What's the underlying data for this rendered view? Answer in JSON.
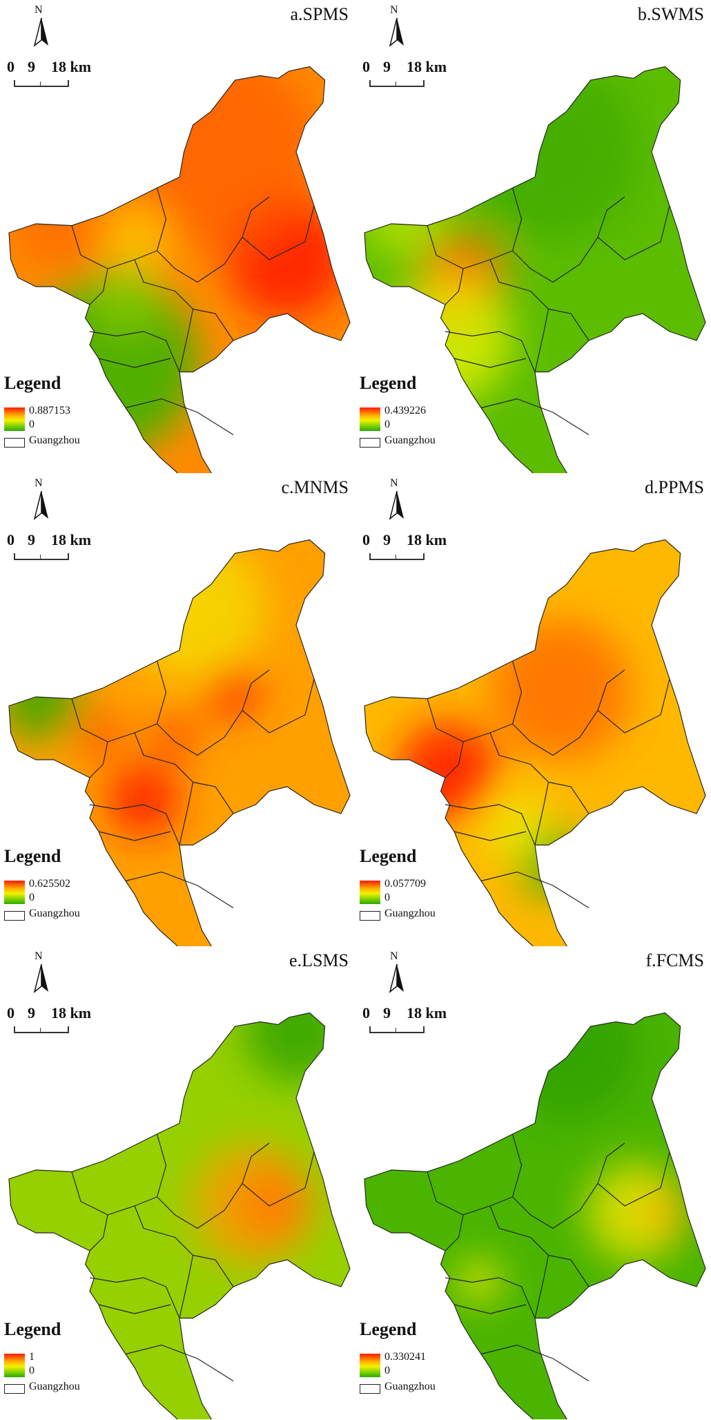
{
  "north_label": "N",
  "scale": {
    "ticks": [
      "0",
      "9",
      "18"
    ],
    "unit": "km"
  },
  "legend": {
    "title": "Legend",
    "boundary_label": "Guangzhou"
  },
  "panels": [
    {
      "title": "a.SPMS",
      "max": "0.887153",
      "min": "0",
      "hotspots": [
        [
          "#ff2000",
          0.82,
          0.48,
          0.17,
          0.9
        ],
        [
          "#ff5a00",
          0.62,
          0.22,
          0.28,
          0.7
        ],
        [
          "#ff6a00",
          0.18,
          0.38,
          0.16,
          0.7
        ],
        [
          "#ffd000",
          0.38,
          0.43,
          0.1,
          0.7
        ],
        [
          "#3fb400",
          0.3,
          0.74,
          0.25,
          0.9
        ],
        [
          "#8fcf00",
          0.35,
          0.58,
          0.1,
          0.7
        ]
      ],
      "base": "#ff8a00"
    },
    {
      "title": "b.SWMS",
      "max": "0.439226",
      "min": "0",
      "hotspots": [
        [
          "#ff1000",
          0.26,
          0.56,
          0.1,
          1.0
        ],
        [
          "#ff7a00",
          0.3,
          0.52,
          0.12,
          0.8
        ],
        [
          "#e6f000",
          0.25,
          0.68,
          0.18,
          0.8
        ],
        [
          "#d8ee00",
          0.12,
          0.38,
          0.12,
          0.6
        ],
        [
          "#3aa800",
          0.55,
          0.22,
          0.25,
          0.7
        ]
      ],
      "base": "#5cbd00"
    },
    {
      "title": "c.MNMS",
      "max": "0.625502",
      "min": "0",
      "hotspots": [
        [
          "#ff2000",
          0.4,
          0.65,
          0.1,
          0.9
        ],
        [
          "#ff3000",
          0.66,
          0.38,
          0.08,
          0.9
        ],
        [
          "#ff4a00",
          0.49,
          0.5,
          0.07,
          0.8
        ],
        [
          "#ff5000",
          0.27,
          0.49,
          0.07,
          0.8
        ],
        [
          "#2aa800",
          0.1,
          0.4,
          0.12,
          0.8
        ],
        [
          "#f2f200",
          0.55,
          0.18,
          0.2,
          0.6
        ]
      ],
      "base": "#ffa000"
    },
    {
      "title": "d.PPMS",
      "max": "0.057709",
      "min": "0",
      "hotspots": [
        [
          "#ff2000",
          0.25,
          0.58,
          0.14,
          0.9
        ],
        [
          "#ff5000",
          0.58,
          0.38,
          0.2,
          0.6
        ],
        [
          "#4ab000",
          0.55,
          0.8,
          0.1,
          0.9
        ],
        [
          "#eef000",
          0.45,
          0.72,
          0.1,
          0.7
        ]
      ],
      "base": "#ffb800"
    },
    {
      "title": "e.LSMS",
      "max": "1",
      "min": "0",
      "hotspots": [
        [
          "#ff1000",
          0.78,
          0.48,
          0.1,
          1.0
        ],
        [
          "#ff9a00",
          0.72,
          0.48,
          0.17,
          0.8
        ],
        [
          "#2aa000",
          0.85,
          0.05,
          0.15,
          0.8
        ]
      ],
      "base": "#96d000"
    },
    {
      "title": "f.FCMS",
      "max": "0.330241",
      "min": "0",
      "hotspots": [
        [
          "#ff1000",
          0.88,
          0.5,
          0.07,
          1.0
        ],
        [
          "#f2e600",
          0.8,
          0.5,
          0.14,
          0.8
        ],
        [
          "#ff1000",
          0.34,
          0.67,
          0.03,
          1.0
        ],
        [
          "#f2f200",
          0.34,
          0.67,
          0.06,
          0.9
        ],
        [
          "#2a9a00",
          0.6,
          0.1,
          0.2,
          0.6
        ]
      ],
      "base": "#4ab400"
    }
  ]
}
